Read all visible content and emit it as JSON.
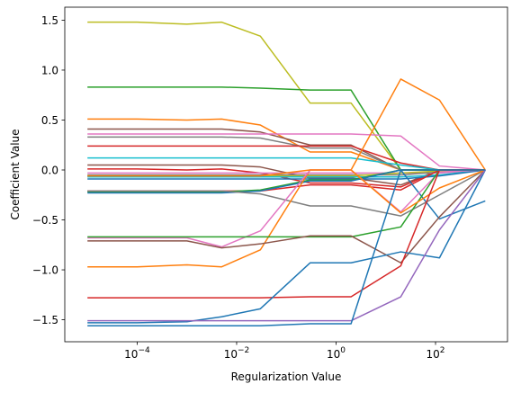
{
  "chart_data": {
    "type": "line",
    "title": "",
    "xlabel": "Regularization Value",
    "ylabel": "Coefficient Value",
    "x_scale": "log",
    "x": [
      1e-05,
      0.0001,
      0.001,
      0.005,
      0.03,
      0.3,
      2,
      20,
      120,
      1000
    ],
    "xlim": [
      3.5e-06,
      2800
    ],
    "ylim": [
      -1.72,
      1.63
    ],
    "x_ticks": [
      {
        "value": 0.0001,
        "base": "10",
        "exp": "−4"
      },
      {
        "value": 0.01,
        "base": "10",
        "exp": "−2"
      },
      {
        "value": 1,
        "base": "10",
        "exp": "0"
      },
      {
        "value": 100,
        "base": "10",
        "exp": "2"
      }
    ],
    "y_ticks": [
      {
        "value": 1.5,
        "label": "1.5"
      },
      {
        "value": 1.0,
        "label": "1.0"
      },
      {
        "value": 0.5,
        "label": "0.5"
      },
      {
        "value": 0.0,
        "label": "0.0"
      },
      {
        "value": -0.5,
        "label": "−0.5"
      },
      {
        "value": -1.0,
        "label": "−1.0"
      },
      {
        "value": -1.5,
        "label": "−1.5"
      }
    ],
    "grid": false,
    "legend": "none",
    "series": [
      {
        "color": "#bcbd22",
        "values": [
          1.48,
          1.48,
          1.46,
          1.48,
          1.34,
          0.67,
          0.67,
          0.0,
          0.0,
          0.0
        ]
      },
      {
        "color": "#2ca02c",
        "values": [
          0.83,
          0.83,
          0.83,
          0.83,
          0.82,
          0.8,
          0.8,
          0.0,
          0.0,
          0.0
        ]
      },
      {
        "color": "#ff7f0e",
        "values": [
          0.51,
          0.51,
          0.5,
          0.51,
          0.45,
          0.18,
          0.18,
          0.0,
          0.0,
          0.0
        ]
      },
      {
        "color": "#8c564b",
        "values": [
          0.41,
          0.41,
          0.41,
          0.41,
          0.38,
          0.25,
          0.25,
          0.0,
          0.0,
          0.0
        ]
      },
      {
        "color": "#e377c2",
        "values": [
          0.36,
          0.36,
          0.36,
          0.36,
          0.36,
          0.36,
          0.36,
          0.34,
          0.04,
          0.0
        ]
      },
      {
        "color": "#7f7f7f",
        "values": [
          0.33,
          0.33,
          0.33,
          0.33,
          0.32,
          0.22,
          0.22,
          0.0,
          0.0,
          0.0
        ]
      },
      {
        "color": "#d62728",
        "values": [
          0.24,
          0.24,
          0.24,
          0.24,
          0.24,
          0.24,
          0.24,
          0.07,
          0.0,
          0.0
        ]
      },
      {
        "color": "#17becf",
        "values": [
          0.12,
          0.12,
          0.12,
          0.12,
          0.12,
          0.12,
          0.12,
          0.05,
          0.0,
          0.0
        ]
      },
      {
        "color": "#8c564b",
        "values": [
          0.05,
          0.05,
          0.05,
          0.05,
          0.03,
          -0.08,
          -0.08,
          -0.15,
          0.0,
          0.0
        ]
      },
      {
        "color": "#d62728",
        "values": [
          0.01,
          0.01,
          0.0,
          0.01,
          -0.03,
          -0.13,
          -0.13,
          -0.17,
          0.0,
          0.0
        ]
      },
      {
        "color": "#e377c2",
        "values": [
          -0.03,
          -0.03,
          -0.03,
          -0.03,
          -0.03,
          -0.03,
          -0.03,
          -0.03,
          -0.03,
          0.0
        ]
      },
      {
        "color": "#7f7f7f",
        "values": [
          -0.05,
          -0.05,
          -0.05,
          -0.05,
          -0.05,
          -0.05,
          -0.05,
          -0.05,
          -0.02,
          0.0
        ]
      },
      {
        "color": "#bcbd22",
        "values": [
          -0.06,
          -0.06,
          -0.06,
          -0.06,
          -0.06,
          -0.06,
          -0.06,
          -0.03,
          -0.01,
          0.0
        ]
      },
      {
        "color": "#17becf",
        "values": [
          -0.07,
          -0.07,
          -0.07,
          -0.07,
          -0.07,
          -0.07,
          -0.07,
          -0.07,
          -0.05,
          0.0
        ]
      },
      {
        "color": "#1f77b4",
        "values": [
          -0.09,
          -0.09,
          -0.09,
          -0.09,
          -0.09,
          -0.09,
          -0.09,
          -0.09,
          -0.06,
          0.0
        ]
      },
      {
        "color": "#d62728",
        "values": [
          -0.21,
          -0.21,
          -0.21,
          -0.21,
          -0.21,
          -0.15,
          -0.15,
          -0.2,
          0.0,
          0.0
        ]
      },
      {
        "color": "#2ca02c",
        "values": [
          -0.22,
          -0.22,
          -0.22,
          -0.22,
          -0.2,
          -0.1,
          -0.1,
          0.0,
          0.0,
          0.0
        ]
      },
      {
        "color": "#1f77b4",
        "values": [
          -0.23,
          -0.23,
          -0.23,
          -0.23,
          -0.21,
          -0.11,
          -0.11,
          0.0,
          -0.49,
          -0.31
        ]
      },
      {
        "color": "#7f7f7f",
        "values": [
          -0.21,
          -0.21,
          -0.21,
          -0.21,
          -0.24,
          -0.36,
          -0.36,
          -0.46,
          -0.25,
          0.0
        ]
      },
      {
        "color": "#ff7f0e",
        "values": [
          -0.97,
          -0.97,
          -0.95,
          -0.97,
          -0.8,
          0.0,
          0.0,
          0.91,
          0.7,
          0.0
        ]
      },
      {
        "color": "#e377c2",
        "values": [
          -0.68,
          -0.68,
          -0.68,
          -0.77,
          -0.61,
          0.0,
          0.0,
          -0.42,
          -0.02,
          0.0
        ]
      },
      {
        "color": "#2ca02c",
        "values": [
          -0.67,
          -0.67,
          -0.67,
          -0.67,
          -0.67,
          -0.67,
          -0.67,
          -0.57,
          0.0,
          0.0
        ]
      },
      {
        "color": "#8c564b",
        "values": [
          -0.71,
          -0.71,
          -0.71,
          -0.78,
          -0.74,
          -0.66,
          -0.66,
          -0.93,
          -0.47,
          0.0
        ]
      },
      {
        "color": "#ff7f0e",
        "values": [
          -0.06,
          -0.06,
          -0.06,
          -0.06,
          -0.06,
          0.0,
          0.0,
          -0.43,
          -0.18,
          0.0
        ]
      },
      {
        "color": "#d62728",
        "values": [
          -1.28,
          -1.28,
          -1.28,
          -1.28,
          -1.28,
          -1.27,
          -1.27,
          -0.96,
          0.0,
          0.0
        ]
      },
      {
        "color": "#1f77b4",
        "values": [
          -1.53,
          -1.53,
          -1.52,
          -1.47,
          -1.39,
          -0.93,
          -0.93,
          -0.82,
          -0.88,
          0.0
        ]
      },
      {
        "color": "#9467bd",
        "values": [
          -1.51,
          -1.51,
          -1.51,
          -1.51,
          -1.51,
          -1.51,
          -1.51,
          -1.27,
          -0.6,
          0.0
        ]
      },
      {
        "color": "#1f77b4",
        "values": [
          -1.56,
          -1.56,
          -1.56,
          -1.56,
          -1.56,
          -1.54,
          -1.54,
          0.0,
          0.0,
          0.0
        ]
      }
    ]
  }
}
